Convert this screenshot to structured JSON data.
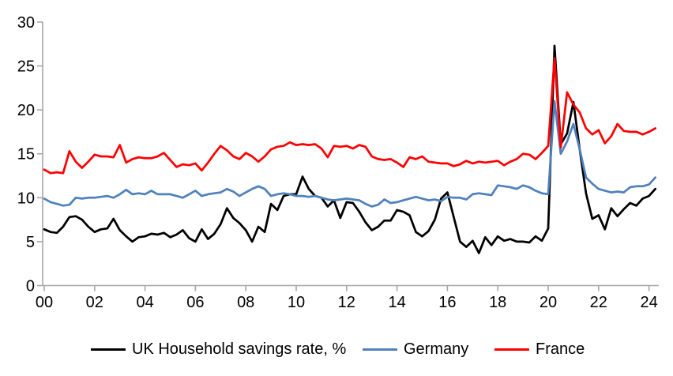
{
  "chart_data": {
    "type": "line",
    "title": "",
    "x_unit": "quarterly, 2000Q1 to 2024Q2",
    "x_start": 2000.0,
    "x_step": 0.25,
    "x_tick_labels": [
      "00",
      "02",
      "04",
      "06",
      "08",
      "10",
      "12",
      "14",
      "16",
      "18",
      "20",
      "22",
      "24"
    ],
    "y_ticks": [
      0,
      5,
      10,
      15,
      20,
      25,
      30
    ],
    "y_tick_labels": [
      "0",
      "5",
      "10",
      "15",
      "20",
      "25",
      "30"
    ],
    "ylim": [
      0,
      30
    ],
    "grid": false,
    "legend_position": "bottom",
    "series": [
      {
        "name": "UK Household savings rate, %",
        "color": "#000000",
        "values": [
          6.4,
          6.1,
          6.0,
          6.7,
          7.8,
          7.9,
          7.5,
          6.7,
          6.1,
          6.4,
          6.5,
          7.6,
          6.3,
          5.6,
          5.0,
          5.5,
          5.6,
          5.9,
          5.8,
          6.0,
          5.5,
          5.8,
          6.3,
          5.4,
          5.0,
          6.4,
          5.3,
          5.9,
          7.0,
          8.8,
          7.7,
          7.1,
          6.3,
          5.0,
          6.7,
          6.1,
          9.3,
          8.6,
          10.2,
          10.4,
          10.4,
          12.4,
          11.0,
          10.2,
          10.0,
          9.0,
          9.7,
          7.7,
          9.5,
          9.4,
          8.4,
          7.2,
          6.3,
          6.7,
          7.4,
          7.4,
          8.6,
          8.4,
          8.0,
          6.1,
          5.6,
          6.2,
          7.5,
          9.9,
          10.6,
          7.8,
          5.0,
          4.4,
          5.1,
          3.7,
          5.5,
          4.6,
          5.6,
          5.1,
          5.3,
          5.0,
          5.0,
          4.9,
          5.6,
          5.1,
          6.5,
          27.3,
          16.1,
          17.3,
          20.9,
          15.5,
          10.5,
          7.6,
          8.0,
          6.4,
          8.8,
          7.9,
          8.7,
          9.4,
          9.1,
          9.9,
          10.2,
          11.0
        ]
      },
      {
        "name": "Germany",
        "color": "#4F81BD",
        "values": [
          9.9,
          9.5,
          9.3,
          9.1,
          9.2,
          10.0,
          9.9,
          10.0,
          10.0,
          10.1,
          10.2,
          10.0,
          10.4,
          10.9,
          10.4,
          10.5,
          10.4,
          10.8,
          10.4,
          10.4,
          10.4,
          10.2,
          10.0,
          10.4,
          10.8,
          10.2,
          10.4,
          10.5,
          10.6,
          11.0,
          10.7,
          10.2,
          10.6,
          11.0,
          11.3,
          11.0,
          10.2,
          10.4,
          10.5,
          10.4,
          10.2,
          10.2,
          10.1,
          10.2,
          10.0,
          9.8,
          9.7,
          9.8,
          9.9,
          9.8,
          9.7,
          9.3,
          9.0,
          9.2,
          9.8,
          9.4,
          9.5,
          9.7,
          9.9,
          10.1,
          9.9,
          9.7,
          9.8,
          9.6,
          10.1,
          10.0,
          10.0,
          9.8,
          10.4,
          10.5,
          10.4,
          10.3,
          11.4,
          11.3,
          11.2,
          11.0,
          11.4,
          11.2,
          10.8,
          10.5,
          10.4,
          21.0,
          15.0,
          16.4,
          18.4,
          15.5,
          12.3,
          11.6,
          11.0,
          10.8,
          10.6,
          10.7,
          10.6,
          11.2,
          11.3,
          11.3,
          11.5,
          12.3
        ]
      },
      {
        "name": "France",
        "color": "#FF0000",
        "values": [
          13.2,
          12.8,
          12.9,
          12.8,
          15.3,
          14.1,
          13.4,
          14.1,
          14.9,
          14.7,
          14.7,
          14.6,
          16.0,
          14.0,
          14.4,
          14.6,
          14.5,
          14.5,
          14.7,
          15.1,
          14.3,
          13.5,
          13.8,
          13.7,
          13.9,
          13.1,
          14.0,
          15.0,
          15.9,
          15.4,
          14.7,
          14.4,
          15.1,
          14.7,
          14.1,
          14.7,
          15.5,
          15.8,
          15.9,
          16.3,
          16.0,
          16.1,
          16.0,
          16.1,
          15.6,
          14.6,
          15.9,
          15.8,
          15.9,
          15.6,
          16.0,
          15.8,
          14.7,
          14.4,
          14.3,
          14.4,
          14.0,
          13.5,
          14.6,
          14.4,
          14.7,
          14.1,
          14.0,
          13.9,
          13.9,
          13.6,
          13.8,
          14.2,
          13.9,
          14.1,
          14.0,
          14.1,
          14.2,
          13.7,
          14.1,
          14.4,
          15.0,
          14.9,
          14.4,
          15.1,
          15.9,
          25.9,
          15.7,
          22.0,
          20.6,
          19.7,
          17.9,
          17.2,
          17.7,
          16.2,
          17.0,
          18.4,
          17.6,
          17.5,
          17.5,
          17.2,
          17.5,
          17.9
        ]
      }
    ],
    "colors": {
      "axis": "#A6A6A6",
      "tick_label": "#000000",
      "background": "#FFFFFF"
    }
  }
}
